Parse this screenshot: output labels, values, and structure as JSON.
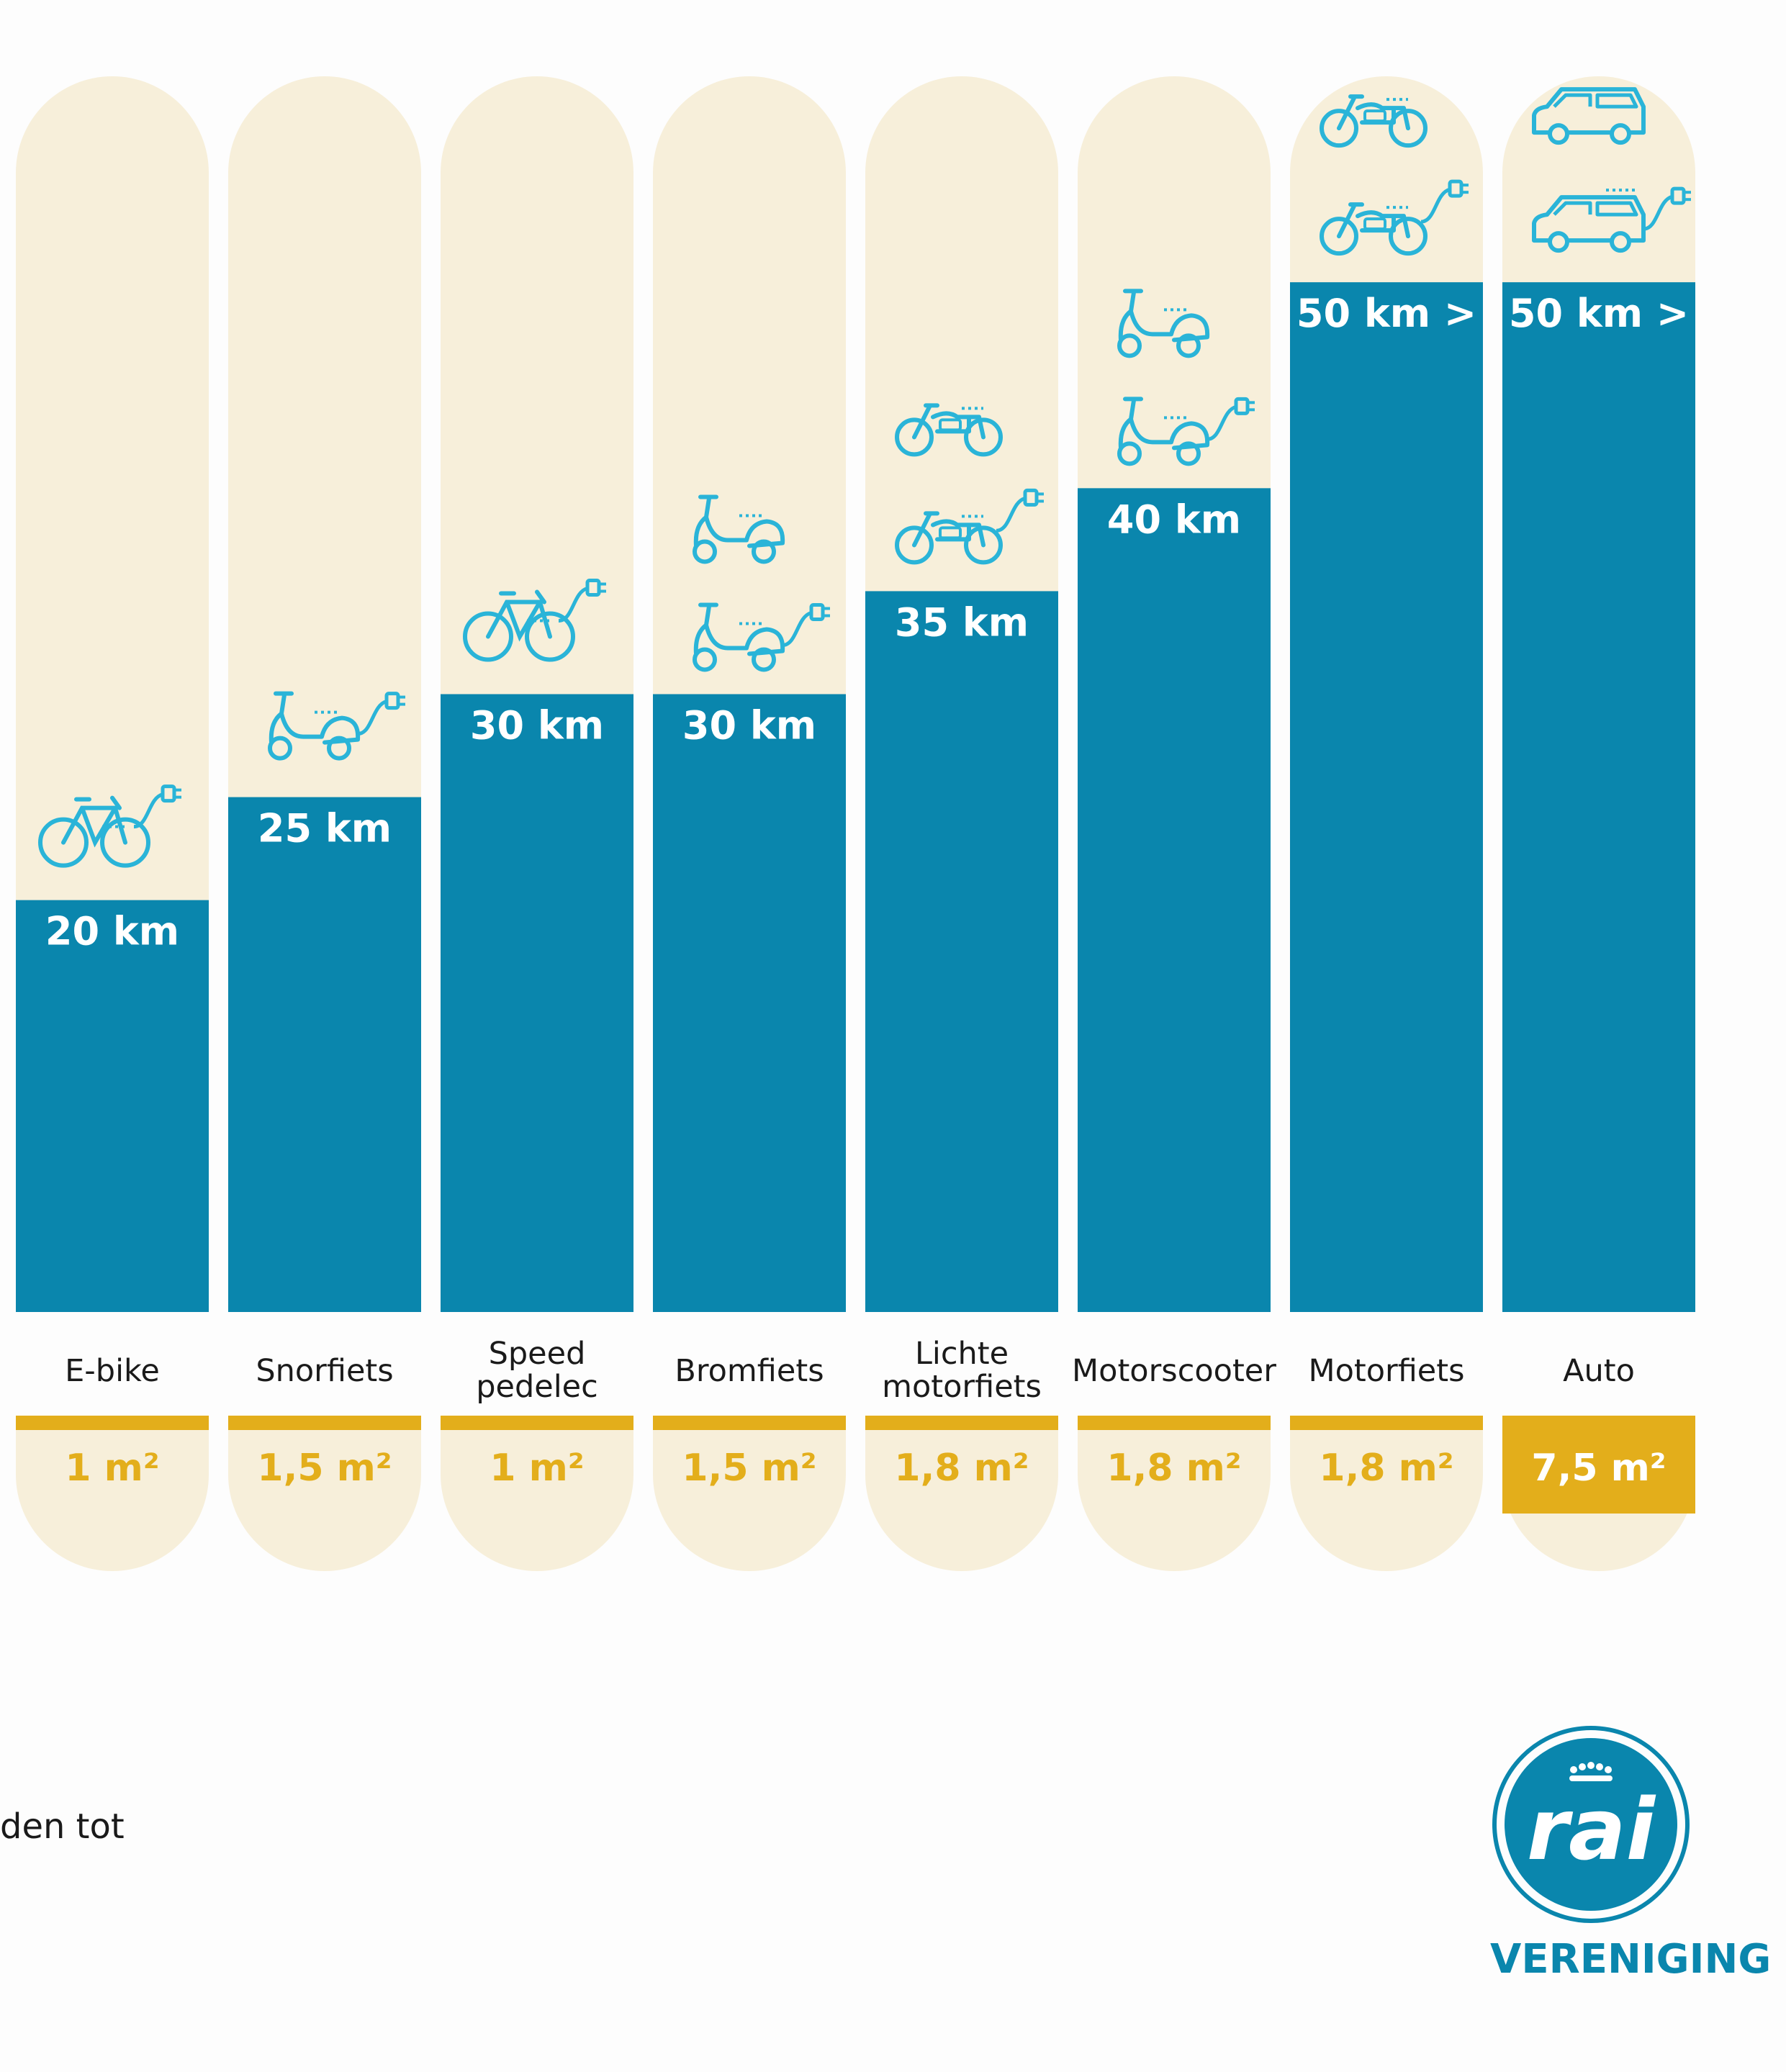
{
  "chart_data": {
    "type": "bar",
    "title": "",
    "xlabel": "",
    "ylabel": "",
    "ylim": [
      0,
      60
    ],
    "unit": "km",
    "categories": [
      "E-bike",
      "Snorfiets",
      "Speed pedelec",
      "Bromfiets",
      "Lichte motorfiets",
      "Motorscooter",
      "Motorfiets",
      "Auto"
    ],
    "category_lines": [
      [
        "E-bike"
      ],
      [
        "Snorfiets"
      ],
      [
        "Speed",
        "pedelec"
      ],
      [
        "Bromfiets"
      ],
      [
        "Lichte",
        "motorfiets"
      ],
      [
        "Motorscooter"
      ],
      [
        "Motorfiets"
      ],
      [
        "Auto"
      ]
    ],
    "values": [
      20,
      25,
      30,
      30,
      35,
      40,
      50,
      50
    ],
    "value_labels": [
      "20 km",
      "25 km",
      "30 km",
      "30 km",
      "35 km",
      "40 km",
      "50 km >",
      "50 km >"
    ],
    "area_labels": [
      "1 m²",
      "1,5 m²",
      "1 m²",
      "1,5 m²",
      "1,8 m²",
      "1,8 m²",
      "1,8 m²",
      "7,5 m²"
    ],
    "area_highlight": [
      false,
      false,
      false,
      false,
      false,
      false,
      false,
      true
    ],
    "icons": [
      [
        "ebike-electric-icon"
      ],
      [
        "scooter-electric-icon"
      ],
      [
        "ebike-electric-icon"
      ],
      [
        "scooter-icon",
        "scooter-electric-icon"
      ],
      [
        "motorcycle-icon",
        "motorcycle-electric-icon"
      ],
      [
        "scooter-icon",
        "scooter-electric-icon"
      ],
      [
        "motorcycle-icon",
        "motorcycle-electric-icon"
      ],
      [
        "car-icon",
        "car-electric-icon"
      ]
    ]
  },
  "footnote": "den tot",
  "logo": {
    "brand": "rai",
    "subtitle": "VERENIGING"
  },
  "colors": {
    "bar": "#0a86ad",
    "track": "#f7efda",
    "accent": "#e3ae1b",
    "icon": "#2ab4d8",
    "text": "#1a1a1a"
  }
}
